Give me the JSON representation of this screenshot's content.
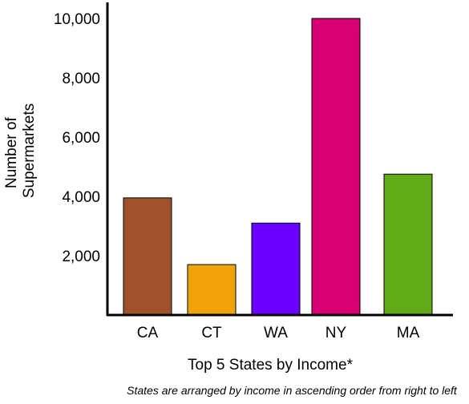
{
  "chart_data": {
    "type": "bar",
    "categories": [
      "CA",
      "CT",
      "WA",
      "NY",
      "MA"
    ],
    "values": [
      3950,
      1700,
      3100,
      10000,
      4750
    ],
    "colors": [
      "#a0522d",
      "#f0a30a",
      "#6a00ff",
      "#d80073",
      "#60a917"
    ],
    "xlabel": "Top 5 States by Income*",
    "ylabel_line1": "Number of",
    "ylabel_line2": "Supermarkets",
    "yticks": [
      2000,
      4000,
      6000,
      8000,
      10000
    ],
    "ytick_labels": [
      "2,000",
      "4,000",
      "6,000",
      "8,000",
      "10,000"
    ],
    "ylim": [
      0,
      10000
    ],
    "grid": false,
    "legend": "none",
    "footnote": "States are arranged by income in ascending order from right to left"
  }
}
